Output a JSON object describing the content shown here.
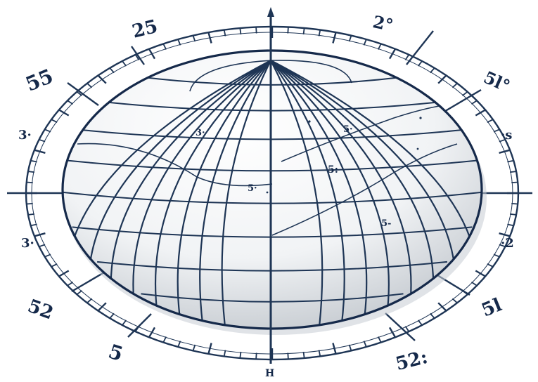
{
  "colors": {
    "ink": "#1e3555",
    "ink_dark": "#15294a",
    "shade_light": "#ffffff",
    "shade_mid": "#e9ecef",
    "shade_dark": "#b9bfc6",
    "background": "#ffffff"
  },
  "dial_labels": [
    {
      "id": "top-left",
      "text": "25"
    },
    {
      "id": "top-right",
      "text": "2°"
    },
    {
      "id": "upper-left",
      "text": "55"
    },
    {
      "id": "upper-right",
      "text": "5l°"
    },
    {
      "id": "left-upper",
      "text": "3·"
    },
    {
      "id": "right-upper",
      "text": "·s"
    },
    {
      "id": "left-lower",
      "text": "3·"
    },
    {
      "id": "right-lower",
      "text": "·2"
    },
    {
      "id": "lower-left",
      "text": "52"
    },
    {
      "id": "lower-right",
      "text": "5l"
    },
    {
      "id": "bottom-left",
      "text": "5"
    },
    {
      "id": "bottom-right",
      "text": "52:"
    },
    {
      "id": "bottom-center",
      "text": "H"
    }
  ],
  "globe_labels": [
    {
      "id": "a",
      "text": "3·"
    },
    {
      "id": "b",
      "text": "5·"
    },
    {
      "id": "c",
      "text": "5:"
    },
    {
      "id": "d",
      "text": "5·"
    },
    {
      "id": "e",
      "text": "5-"
    }
  ]
}
